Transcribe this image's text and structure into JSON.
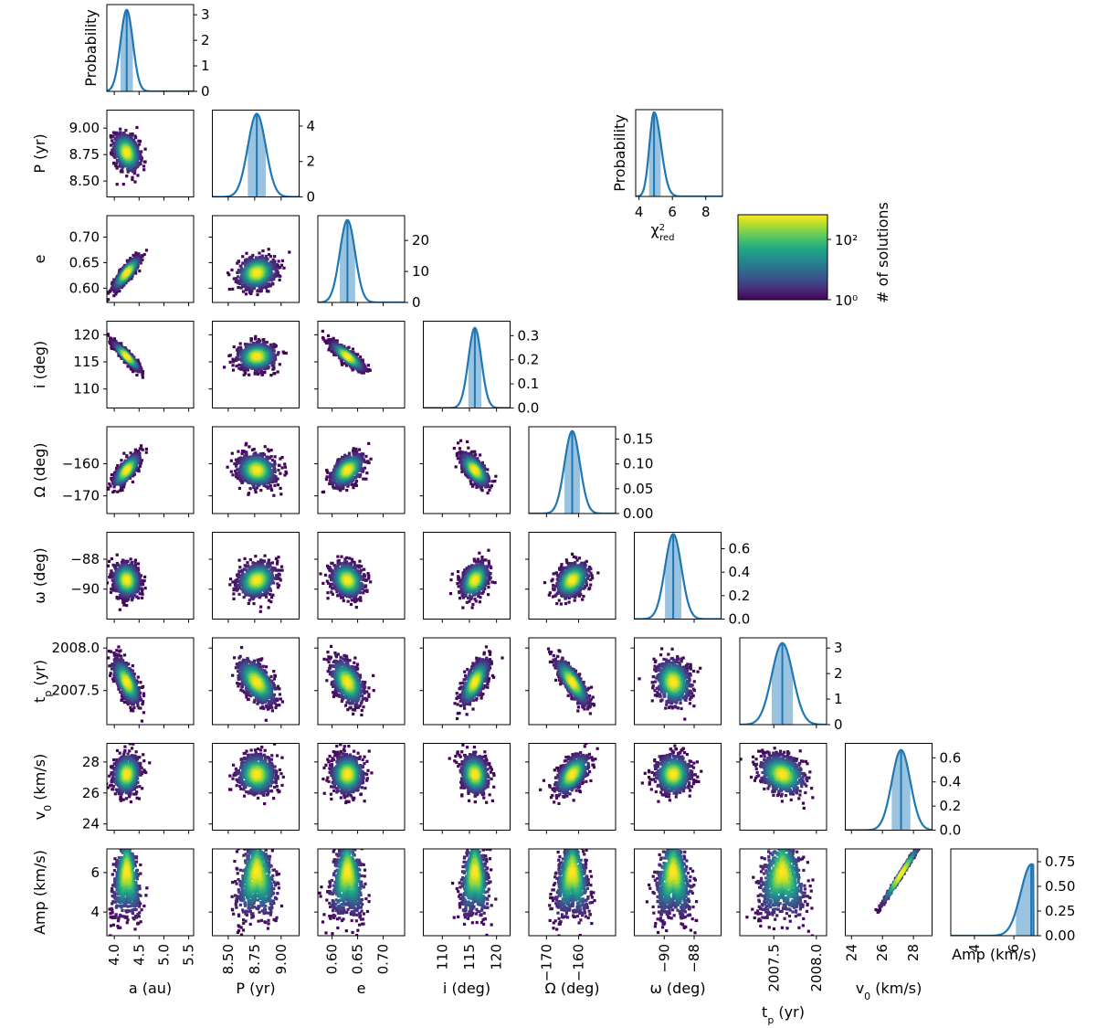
{
  "chart_data": {
    "type": "corner",
    "title": "",
    "parameters": [
      {
        "key": "a",
        "label": "a (au)",
        "axis_min": 3.85,
        "axis_max": 5.6,
        "ticks": [
          4.0,
          4.5,
          5.0,
          5.5
        ],
        "tick_labels": [
          "4.0",
          "4.5",
          "5.0",
          "5.5"
        ],
        "mean": 4.25,
        "sd": 0.125
      },
      {
        "key": "P",
        "label": "P (yr)",
        "axis_min": 8.35,
        "axis_max": 9.17,
        "ticks": [
          8.5,
          8.75,
          9.0
        ],
        "tick_labels": [
          "8.50",
          "8.75",
          "9.00"
        ],
        "mean": 8.77,
        "sd": 0.085
      },
      {
        "key": "e",
        "label": "e",
        "axis_min": 0.572,
        "axis_max": 0.742,
        "ticks": [
          0.6,
          0.65,
          0.7
        ],
        "tick_labels": [
          "0.60",
          "0.65",
          "0.70"
        ],
        "mean": 0.63,
        "sd": 0.015
      },
      {
        "key": "i",
        "label": "i (deg)",
        "axis_min": 106.5,
        "axis_max": 122.5,
        "ticks": [
          110,
          115,
          120
        ],
        "tick_labels": [
          "110",
          "115",
          "120"
        ],
        "mean": 116.0,
        "sd": 1.2
      },
      {
        "key": "Omega",
        "label": "Ω (deg)",
        "axis_min": -175.5,
        "axis_max": -148.5,
        "ticks": [
          -170,
          -160
        ],
        "tick_labels": [
          "−170",
          "−160"
        ],
        "mean": -162.0,
        "sd": 2.4
      },
      {
        "key": "omega",
        "label": "ω (deg)",
        "axis_min": -92.0,
        "axis_max": -86.2,
        "ticks": [
          -90,
          -88
        ],
        "tick_labels": [
          "−90",
          "−88"
        ],
        "mean": -89.4,
        "sd": 0.55
      },
      {
        "key": "tp",
        "label": "t_p (yr)",
        "axis_min": 2007.1,
        "axis_max": 2008.12,
        "ticks": [
          2007.5,
          2008.0
        ],
        "tick_labels": [
          "2007.5",
          "2008.0"
        ],
        "mean": 2007.6,
        "sd": 0.125
      },
      {
        "key": "v0",
        "label": "v_0 (km/s)",
        "axis_min": 23.6,
        "axis_max": 29.2,
        "ticks": [
          24,
          26,
          28
        ],
        "tick_labels": [
          "24",
          "26",
          "28"
        ],
        "mean": 27.2,
        "sd": 0.6
      },
      {
        "key": "Amp",
        "label": "Amp (km/s)",
        "axis_min": 2.8,
        "axis_max": 7.2,
        "ticks": [
          4,
          6
        ],
        "tick_labels": [
          "4",
          "6"
        ],
        "mean": 6.9,
        "sd": 0.55
      }
    ],
    "y_tick_labels": {
      "P": [
        "8.50",
        "8.75",
        "9.00"
      ],
      "e": [
        "0.60",
        "0.65",
        "0.70"
      ],
      "i": [
        "110",
        "115",
        "120"
      ],
      "Omega": [
        "−170",
        "−160"
      ],
      "omega": [
        "−90",
        "−88"
      ],
      "tp": [
        "2007.5",
        "2008.0"
      ],
      "v0": [
        "24",
        "26",
        "28"
      ],
      "Amp": [
        "4",
        "6"
      ]
    },
    "diagonal": [
      {
        "param": "a",
        "ylim": [
          0,
          3.4
        ],
        "yticks": [
          0,
          1,
          2,
          3
        ],
        "ytick_labels": [
          "0",
          "1",
          "2",
          "3"
        ],
        "ylabel": "Probability"
      },
      {
        "param": "P",
        "ylim": [
          0,
          4.9
        ],
        "yticks": [
          0,
          2,
          4
        ],
        "ytick_labels": [
          "0",
          "2",
          "4"
        ]
      },
      {
        "param": "e",
        "ylim": [
          0,
          28
        ],
        "yticks": [
          0,
          10,
          20
        ],
        "ytick_labels": [
          "0",
          "10",
          "20"
        ]
      },
      {
        "param": "i",
        "ylim": [
          0,
          0.36
        ],
        "yticks": [
          0,
          0.1,
          0.2,
          0.3
        ],
        "ytick_labels": [
          "0.0",
          "0.1",
          "0.2",
          "0.3"
        ]
      },
      {
        "param": "Omega",
        "ylim": [
          0,
          0.175
        ],
        "yticks": [
          0,
          0.05,
          0.1,
          0.15
        ],
        "ytick_labels": [
          "0.00",
          "0.05",
          "0.10",
          "0.15"
        ]
      },
      {
        "param": "omega",
        "ylim": [
          0,
          0.74
        ],
        "yticks": [
          0,
          0.2,
          0.4,
          0.6
        ],
        "ytick_labels": [
          "0.0",
          "0.2",
          "0.4",
          "0.6"
        ]
      },
      {
        "param": "tp",
        "ylim": [
          0,
          3.4
        ],
        "yticks": [
          0,
          1,
          2,
          3
        ],
        "ytick_labels": [
          "0",
          "1",
          "2",
          "3"
        ]
      },
      {
        "param": "v0",
        "ylim": [
          0,
          0.72
        ],
        "yticks": [
          0,
          0.2,
          0.4,
          0.6
        ],
        "ytick_labels": [
          "0.0",
          "0.2",
          "0.4",
          "0.6"
        ]
      },
      {
        "param": "Amp",
        "ylim": [
          0,
          0.88
        ],
        "yticks": [
          0,
          0.25,
          0.5,
          0.75
        ],
        "ytick_labels": [
          "0.00",
          "0.25",
          "0.50",
          "0.75"
        ],
        "xlabel": "Amp (km/s)",
        "truncated_at": 7.0
      }
    ],
    "chi2": {
      "xlabel": "χ²_red",
      "ylabel": "Probability",
      "xlim": [
        3.8,
        9.0
      ],
      "xticks": [
        4,
        6,
        8
      ],
      "xtick_labels": [
        "4",
        "6",
        "8"
      ],
      "mean": 4.9,
      "sd": 0.35
    },
    "colorbar": {
      "label": "# of solutions",
      "scale": "log",
      "ticks": [
        "10⁰",
        "10²"
      ],
      "colormap": "viridis"
    },
    "correlations": {
      "P_a": -0.3,
      "e_a": 0.85,
      "e_P": 0.15,
      "i_a": -0.92,
      "i_P": 0.05,
      "i_e": -0.85,
      "Omega_a": 0.75,
      "Omega_P": -0.1,
      "Omega_e": 0.45,
      "Omega_i": -0.65,
      "omega_a": -0.1,
      "omega_P": 0.2,
      "omega_e": -0.2,
      "omega_i": 0.35,
      "omega_Omega": 0.35,
      "tp_a": -0.65,
      "tp_P": -0.55,
      "tp_e": -0.45,
      "tp_i": 0.65,
      "tp_Omega": -0.8,
      "tp_omega": -0.15,
      "v0_a": 0.1,
      "v0_P": -0.05,
      "v0_e": 0.0,
      "v0_i": -0.15,
      "v0_Omega": 0.55,
      "v0_omega": 0.0,
      "v0_tp": -0.25,
      "Amp_a": 0.0,
      "Amp_P": 0.0,
      "Amp_e": 0.0,
      "Amp_i": 0.0,
      "Amp_Omega": 0.0,
      "Amp_omega": 0.0,
      "Amp_tp": 0.0,
      "Amp_v0": 0.95
    },
    "colors": {
      "curve": "#1f77b4",
      "shade": "#9ac3e0"
    }
  }
}
